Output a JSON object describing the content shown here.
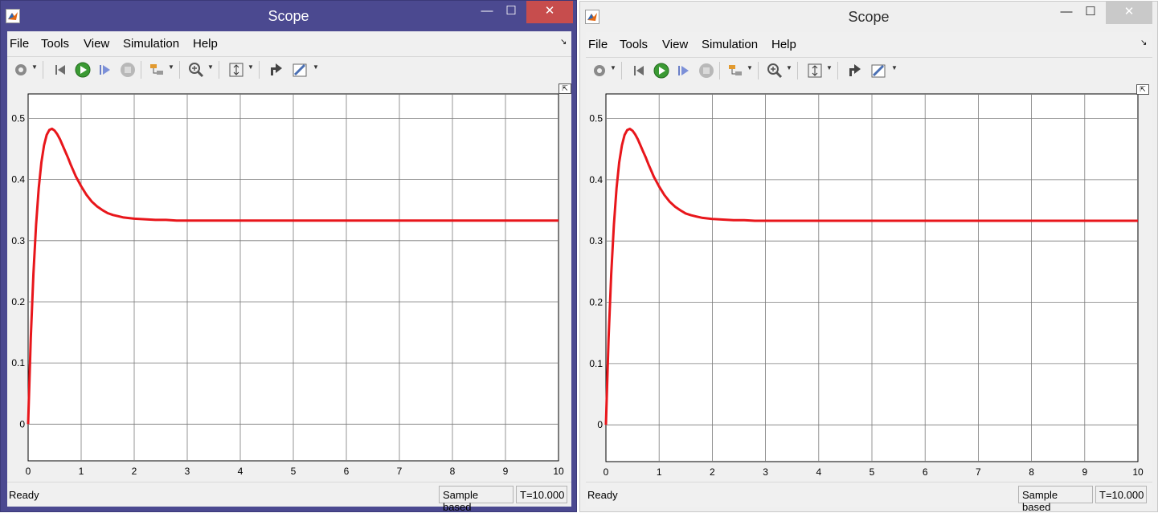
{
  "windows": [
    {
      "title": "Scope",
      "state": "active",
      "controls": {
        "minimize": "—",
        "maximize": "☐",
        "close": "✕"
      },
      "menu": [
        "File",
        "Tools",
        "View",
        "Simulation",
        "Help"
      ],
      "dock_glyph": "↘",
      "toolbar": [
        "parameters-icon",
        "step-back-icon",
        "run-icon",
        "step-forward-icon",
        "stop-icon",
        "highlight-icon",
        "zoom-in-icon",
        "scale-axes-icon",
        "style-icon",
        "measurements-icon"
      ],
      "undock_glyph": "⇱",
      "status": {
        "ready": "Ready",
        "mode": "Sample based",
        "time": "T=10.000"
      }
    },
    {
      "title": "Scope",
      "state": "inactive",
      "controls": {
        "minimize": "—",
        "maximize": "☐",
        "close": "✕"
      },
      "menu": [
        "File",
        "Tools",
        "View",
        "Simulation",
        "Help"
      ],
      "dock_glyph": "↘",
      "toolbar": [
        "parameters-icon",
        "step-back-icon",
        "run-icon",
        "step-forward-icon",
        "stop-icon",
        "highlight-icon",
        "zoom-in-icon",
        "scale-axes-icon",
        "style-icon",
        "measurements-icon"
      ],
      "undock_glyph": "⇱",
      "status": {
        "ready": "Ready",
        "mode": "Sample based",
        "time": "T=10.000"
      }
    }
  ],
  "colors": {
    "line": "#e8161b",
    "grid": "#7a7a7a",
    "active_frame": "#4b4990",
    "close_active": "#c74d4d"
  },
  "chart_data": [
    {
      "type": "line",
      "xlim": [
        0,
        10
      ],
      "ylim": [
        -0.06,
        0.54
      ],
      "xticks": [
        0,
        1,
        2,
        3,
        4,
        5,
        6,
        7,
        8,
        9,
        10
      ],
      "yticks": [
        0,
        0.1,
        0.2,
        0.3,
        0.4,
        0.5
      ],
      "grid": true,
      "series": [
        {
          "x": [
            0,
            0.05,
            0.1,
            0.15,
            0.2,
            0.25,
            0.3,
            0.35,
            0.4,
            0.45,
            0.5,
            0.55,
            0.6,
            0.65,
            0.7,
            0.75,
            0.8,
            0.85,
            0.9,
            0.95,
            1,
            1.1,
            1.2,
            1.3,
            1.4,
            1.5,
            1.6,
            1.7,
            1.8,
            1.9,
            2,
            2.2,
            2.4,
            2.6,
            2.8,
            3,
            3.5,
            4,
            5,
            6,
            7,
            8,
            9,
            10
          ],
          "y": [
            0,
            0.141,
            0.246,
            0.326,
            0.386,
            0.428,
            0.456,
            0.473,
            0.481,
            0.483,
            0.48,
            0.474,
            0.466,
            0.456,
            0.446,
            0.436,
            0.425,
            0.415,
            0.405,
            0.397,
            0.389,
            0.375,
            0.364,
            0.356,
            0.35,
            0.345,
            0.342,
            0.34,
            0.338,
            0.337,
            0.336,
            0.335,
            0.334,
            0.334,
            0.333,
            0.333,
            0.333,
            0.333,
            0.333,
            0.333,
            0.333,
            0.333,
            0.333,
            0.333
          ]
        }
      ]
    },
    {
      "type": "line",
      "xlim": [
        0,
        10
      ],
      "ylim": [
        -0.06,
        0.54
      ],
      "xticks": [
        0,
        1,
        2,
        3,
        4,
        5,
        6,
        7,
        8,
        9,
        10
      ],
      "yticks": [
        0,
        0.1,
        0.2,
        0.3,
        0.4,
        0.5
      ],
      "grid": true,
      "series": [
        {
          "x": [
            0,
            0.05,
            0.1,
            0.15,
            0.2,
            0.25,
            0.3,
            0.35,
            0.4,
            0.45,
            0.5,
            0.55,
            0.6,
            0.65,
            0.7,
            0.75,
            0.8,
            0.85,
            0.9,
            0.95,
            1,
            1.1,
            1.2,
            1.3,
            1.4,
            1.5,
            1.6,
            1.7,
            1.8,
            1.9,
            2,
            2.2,
            2.4,
            2.6,
            2.8,
            3,
            3.5,
            4,
            5,
            6,
            7,
            8,
            9,
            10
          ],
          "y": [
            0,
            0.141,
            0.246,
            0.326,
            0.386,
            0.428,
            0.456,
            0.473,
            0.481,
            0.483,
            0.48,
            0.474,
            0.466,
            0.456,
            0.446,
            0.436,
            0.425,
            0.415,
            0.405,
            0.397,
            0.389,
            0.375,
            0.364,
            0.356,
            0.35,
            0.345,
            0.342,
            0.34,
            0.338,
            0.337,
            0.336,
            0.335,
            0.334,
            0.334,
            0.333,
            0.333,
            0.333,
            0.333,
            0.333,
            0.333,
            0.333,
            0.333,
            0.333,
            0.333
          ]
        }
      ]
    }
  ]
}
